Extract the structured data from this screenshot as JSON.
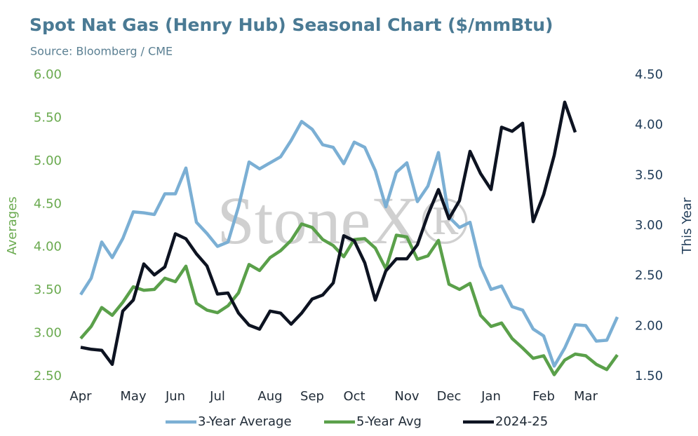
{
  "chart_data": {
    "type": "line",
    "title": "Spot Nat Gas (Henry Hub) Seasonal Chart ($/mmBtu)",
    "subtitle": "Source: Bloomberg / CME",
    "watermark": "StoneX®",
    "ylabel": "Averages",
    "y2label": "This Year",
    "categories": [
      "Apr",
      null,
      null,
      null,
      null,
      "May",
      null,
      null,
      null,
      "Jun",
      null,
      null,
      null,
      "Jul",
      null,
      null,
      null,
      null,
      "Aug",
      null,
      null,
      null,
      "Sep",
      null,
      null,
      null,
      "Oct",
      null,
      null,
      null,
      null,
      "Nov",
      null,
      null,
      null,
      "Dec",
      null,
      null,
      null,
      "Jan",
      null,
      null,
      null,
      null,
      "Feb",
      null,
      null,
      null,
      "Mar",
      null,
      null,
      null
    ],
    "ylim": [
      2.5,
      6.0
    ],
    "yticks": [
      {
        "value": 2.5,
        "label": "2.50"
      },
      {
        "value": 3.0,
        "label": "3.00"
      },
      {
        "value": 3.5,
        "label": "3.50"
      },
      {
        "value": 4.0,
        "label": "4.00"
      },
      {
        "value": 4.5,
        "label": "4.50"
      },
      {
        "value": 5.0,
        "label": "5.00"
      },
      {
        "value": 5.5,
        "label": "5.50"
      },
      {
        "value": 6.0,
        "label": "6.00"
      }
    ],
    "y2lim": [
      1.5,
      4.5
    ],
    "y2ticks": [
      {
        "value": 1.5,
        "label": "1.50"
      },
      {
        "value": 2.0,
        "label": "2.00"
      },
      {
        "value": 2.5,
        "label": "2.50"
      },
      {
        "value": 3.0,
        "label": "3.00"
      },
      {
        "value": 3.5,
        "label": "3.50"
      },
      {
        "value": 4.0,
        "label": "4.00"
      },
      {
        "value": 4.5,
        "label": "4.50"
      }
    ],
    "grid": false,
    "series": [
      {
        "name": "3-Year Average",
        "color": "#7bafd4",
        "values": [
          3.45,
          3.64,
          4.06,
          3.88,
          4.1,
          4.41,
          4.4,
          4.38,
          4.62,
          4.62,
          4.92,
          4.29,
          4.16,
          4.01,
          4.06,
          4.47,
          4.99,
          4.91,
          4.98,
          5.05,
          5.24,
          5.46,
          5.37,
          5.19,
          5.16,
          4.97,
          5.22,
          5.16,
          4.89,
          4.47,
          4.87,
          4.98,
          4.53,
          4.71,
          5.1,
          4.35,
          4.23,
          4.29,
          3.78,
          3.51,
          3.55,
          3.31,
          3.27,
          3.05,
          2.97,
          2.62,
          2.83,
          3.1,
          3.09,
          2.91,
          2.92,
          3.19
        ]
      },
      {
        "name": "5-Year Avg",
        "color": "#5aa04a",
        "values": [
          2.94,
          3.08,
          3.3,
          3.21,
          3.36,
          3.54,
          3.5,
          3.51,
          3.64,
          3.6,
          3.78,
          3.35,
          3.27,
          3.24,
          3.32,
          3.47,
          3.8,
          3.73,
          3.88,
          3.96,
          4.08,
          4.27,
          4.23,
          4.09,
          4.02,
          3.89,
          4.09,
          4.1,
          3.99,
          3.75,
          4.14,
          4.12,
          3.86,
          3.9,
          4.08,
          3.57,
          3.51,
          3.58,
          3.21,
          3.08,
          3.12,
          2.94,
          2.83,
          2.71,
          2.74,
          2.52,
          2.69,
          2.76,
          2.74,
          2.64,
          2.58,
          2.75
        ]
      },
      {
        "name": "2024-25",
        "color": "#0d1321",
        "axis": "y2",
        "values": [
          1.79,
          1.77,
          1.76,
          1.62,
          2.15,
          2.26,
          2.62,
          2.51,
          2.59,
          2.92,
          2.87,
          2.72,
          2.6,
          2.32,
          2.33,
          2.13,
          2.01,
          1.97,
          2.15,
          2.13,
          2.02,
          2.13,
          2.27,
          2.31,
          2.43,
          2.9,
          2.85,
          2.63,
          2.26,
          2.55,
          2.67,
          2.67,
          2.81,
          3.11,
          3.36,
          3.07,
          3.25,
          3.74,
          3.52,
          3.36,
          3.98,
          3.94,
          4.02,
          3.04,
          3.31,
          3.7,
          4.23,
          3.93,
          null,
          null,
          null,
          null
        ]
      }
    ]
  }
}
